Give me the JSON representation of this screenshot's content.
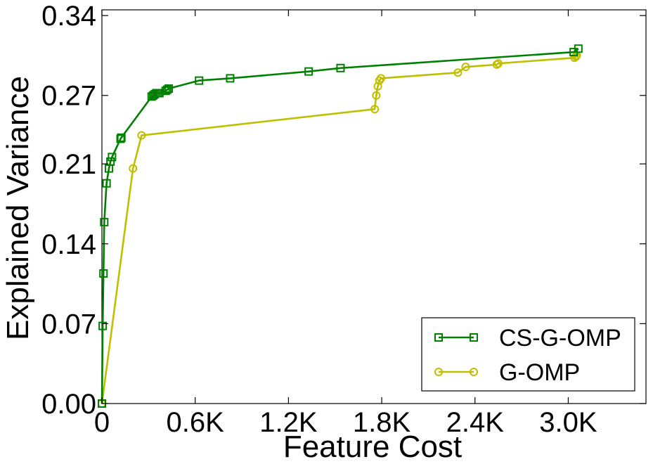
{
  "chart_data": {
    "type": "line",
    "title": "",
    "xlabel": "Feature Cost",
    "ylabel": "Explained Variance",
    "xlim": [
      0,
      3500
    ],
    "ylim": [
      0,
      0.345
    ],
    "xticks": [
      0,
      600,
      1200,
      1800,
      2400,
      3000
    ],
    "xtick_labels": [
      "0",
      "0.6K",
      "1.2K",
      "1.8K",
      "2.4K",
      "3.0K"
    ],
    "yticks": [
      0,
      0.07,
      0.14,
      0.21,
      0.27,
      0.34
    ],
    "ytick_labels": [
      "0.00",
      "0.07",
      "0.14",
      "0.21",
      "0.27",
      "0.34"
    ],
    "grid": false,
    "legend_position": "lower-right",
    "series": [
      {
        "name": "CS-G-OMP",
        "color": "#008000",
        "marker": "square",
        "x": [
          0,
          5,
          10,
          15,
          30,
          45,
          55,
          65,
          120,
          125,
          320,
          330,
          340,
          350,
          360,
          370,
          410,
          420,
          430,
          625,
          825,
          1330,
          1535,
          3035,
          3065
        ],
        "y": [
          0.0,
          0.068,
          0.114,
          0.159,
          0.193,
          0.206,
          0.212,
          0.216,
          0.232,
          0.233,
          0.269,
          0.27,
          0.271,
          0.272,
          0.272,
          0.272,
          0.274,
          0.275,
          0.276,
          0.283,
          0.285,
          0.291,
          0.294,
          0.308,
          0.311
        ]
      },
      {
        "name": "G-OMP",
        "color": "#BFBF00",
        "marker": "circle",
        "x": [
          0,
          200,
          255,
          1755,
          1765,
          1775,
          1785,
          1795,
          2290,
          2340,
          2540,
          2550,
          3040,
          3050,
          3055
        ],
        "y": [
          0.0,
          0.206,
          0.235,
          0.258,
          0.27,
          0.278,
          0.283,
          0.285,
          0.29,
          0.295,
          0.297,
          0.298,
          0.303,
          0.304,
          0.305
        ]
      }
    ]
  }
}
